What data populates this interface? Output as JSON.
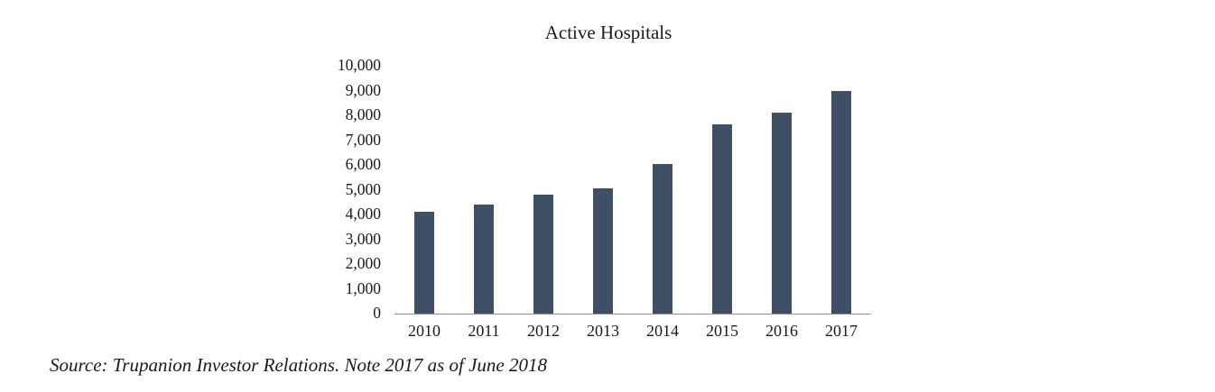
{
  "chart_data": {
    "type": "bar",
    "title": "Active Hospitals",
    "categories": [
      "2010",
      "2011",
      "2012",
      "2013",
      "2014",
      "2015",
      "2016",
      "2017"
    ],
    "values": [
      4100,
      4400,
      4800,
      5050,
      6050,
      7650,
      8100,
      9000
    ],
    "xlabel": "",
    "ylabel": "",
    "ylim": [
      0,
      10000
    ],
    "ytick_step": 1000,
    "ytick_labels": [
      "0",
      "1,000",
      "2,000",
      "3,000",
      "4,000",
      "5,000",
      "6,000",
      "7,000",
      "8,000",
      "9,000",
      "10,000"
    ],
    "bar_color": "#3e4f66",
    "axis_line_color": "#8c8c8c",
    "grid": false,
    "legend": false
  },
  "source_note": "Source: Trupanion Investor Relations. Note 2017 as of June 2018"
}
